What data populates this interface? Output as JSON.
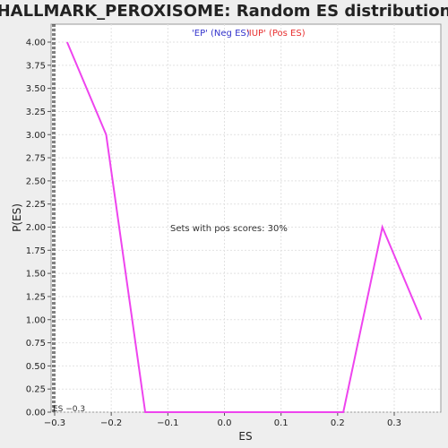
{
  "chart_data": {
    "type": "line",
    "title": "HALLMARK_PEROXISOME: Random ES distribution",
    "xlabel": "ES",
    "ylabel": "P(ES)",
    "xlim": [
      -0.3,
      0.38
    ],
    "ylim": [
      0,
      4.2
    ],
    "x_ticks": [
      -0.3,
      -0.2,
      -0.1,
      0.0,
      0.1,
      0.2,
      0.3
    ],
    "x_tick_labels": [
      "−0.3",
      "−0.2",
      "−0.1",
      "0.0",
      "0.1",
      "0.2",
      "0.3"
    ],
    "y_ticks": [
      0,
      0.25,
      0.5,
      0.75,
      1.0,
      1.25,
      1.5,
      1.75,
      2.0,
      2.25,
      2.5,
      2.75,
      3.0,
      3.25,
      3.5,
      3.75,
      4.0
    ],
    "y_tick_labels": [
      "0.00",
      "0.25",
      "0.50",
      "0.75",
      "1.00",
      "1.25",
      "1.50",
      "1.75",
      "2.00",
      "2.25",
      "2.50",
      "2.75",
      "3.00",
      "3.25",
      "3.50",
      "3.75",
      "4.00"
    ],
    "grid": true,
    "series": [
      {
        "color": "#ee44ee",
        "x": [
          -0.278,
          -0.209,
          -0.14,
          -0.07,
          0.0,
          0.07,
          0.14,
          0.21,
          0.279,
          0.348
        ],
        "y": [
          4.0,
          3.0,
          0.0,
          0.0,
          0.0,
          0.0,
          0.0,
          0.0,
          2.0,
          1.0
        ]
      }
    ],
    "legend": {
      "placement": "top-center",
      "neg_label": "'EP' (Neg ES)",
      "pos_label": "'IUP' (Pos ES)"
    },
    "observed_es": {
      "value": -0.3,
      "label": "ES −0.3"
    },
    "annotation": "Sets with pos scores: 30%"
  },
  "colors": {
    "line": "#ee44ee",
    "neg_legend": "#3333cc",
    "pos_legend": "#e83030",
    "plot_bg": "#ffffff",
    "page_bg": "#eeeeee"
  }
}
